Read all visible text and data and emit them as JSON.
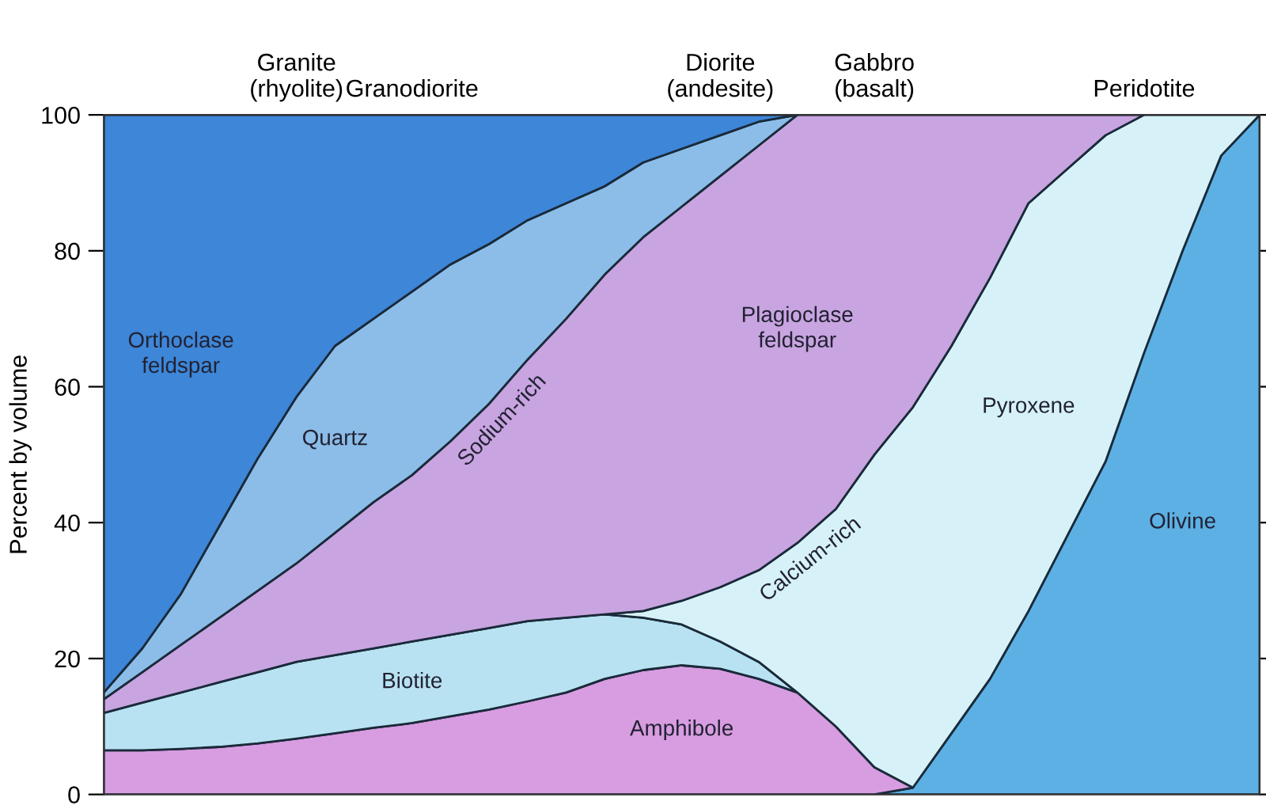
{
  "chart_data": {
    "type": "area",
    "stacked": true,
    "ylabel": "Percent by volume",
    "categories": [
      null,
      null,
      null,
      null,
      null,
      "Granite\n(rhyolite)",
      null,
      null,
      "Granodiorite",
      null,
      null,
      null,
      null,
      null,
      null,
      null,
      "Diorite\n(andesite)",
      null,
      null,
      null,
      "Gabbro\n(basalt)",
      null,
      null,
      null,
      null,
      null,
      null,
      "Peridotite",
      null,
      null,
      null
    ],
    "series": [
      {
        "name": "Olivine",
        "color": "#5cb0e4",
        "values": [
          null,
          null,
          null,
          null,
          null,
          null,
          null,
          null,
          null,
          null,
          null,
          null,
          null,
          null,
          null,
          null,
          null,
          null,
          null,
          null,
          0,
          1,
          9,
          17,
          27,
          38,
          49,
          65,
          80,
          94,
          100
        ]
      },
      {
        "name": "Amphibole",
        "color": "#d89ce0",
        "values": [
          6.5,
          6.5,
          6.7,
          7,
          7.5,
          8.2,
          9,
          9.8,
          10.5,
          11.5,
          12.5,
          13.7,
          15,
          17,
          18.3,
          19,
          18.5,
          17,
          15,
          10,
          4,
          0,
          null,
          null,
          null,
          null,
          null,
          null,
          null,
          null,
          null
        ]
      },
      {
        "name": "Biotite",
        "color": "#b8e2f2",
        "values": [
          5.5,
          7,
          8.3,
          9.5,
          10.5,
          11.3,
          11.5,
          11.7,
          12,
          12,
          12,
          11.8,
          11,
          9.5,
          7.7,
          6,
          4,
          2.5,
          0,
          null,
          null,
          null,
          null,
          null,
          null,
          null,
          null,
          null,
          null,
          null,
          null
        ]
      },
      {
        "name": "Pyroxene",
        "color": "#d6f2f8",
        "values": [
          null,
          null,
          null,
          null,
          null,
          null,
          null,
          null,
          null,
          null,
          null,
          null,
          null,
          0,
          1,
          3.5,
          8,
          13.5,
          22,
          32,
          46,
          56,
          57,
          59,
          60,
          54,
          48,
          35,
          20,
          6,
          0
        ]
      },
      {
        "name": "Plagioclase\nfeldspar",
        "color": "#c8a4e0",
        "values": [
          2,
          4.5,
          7,
          9.5,
          12,
          14.5,
          18,
          21.5,
          24.5,
          28.5,
          33,
          38.5,
          44,
          50,
          55,
          58,
          60.5,
          62.5,
          63,
          58,
          50,
          43,
          34,
          24,
          13,
          8,
          3,
          0,
          null,
          null,
          null
        ]
      },
      {
        "name": "Quartz",
        "color": "#8bbde8",
        "values": [
          1,
          3.5,
          7.5,
          13.5,
          19.5,
          24.5,
          27.5,
          27,
          27,
          26,
          23.5,
          20.5,
          17,
          13,
          11,
          8.5,
          6,
          3.5,
          0,
          null,
          null,
          null,
          null,
          null,
          null,
          null,
          null,
          null,
          null,
          null,
          null
        ]
      },
      {
        "name": "Orthoclase\nfeldspar",
        "color": "#3d86d8",
        "values": [
          85,
          78.5,
          70.5,
          60.5,
          50.5,
          41.5,
          34,
          30,
          26,
          22,
          19,
          15.5,
          13,
          10.5,
          7,
          5,
          3,
          1,
          0,
          null,
          null,
          null,
          null,
          null,
          null,
          null,
          null,
          null,
          null,
          null,
          null
        ]
      }
    ],
    "ylim": [
      0,
      100
    ],
    "yticks": [
      0,
      20,
      40,
      60,
      80,
      100
    ],
    "annotations": [
      "Sodium-rich",
      "Calcium-rich"
    ]
  }
}
